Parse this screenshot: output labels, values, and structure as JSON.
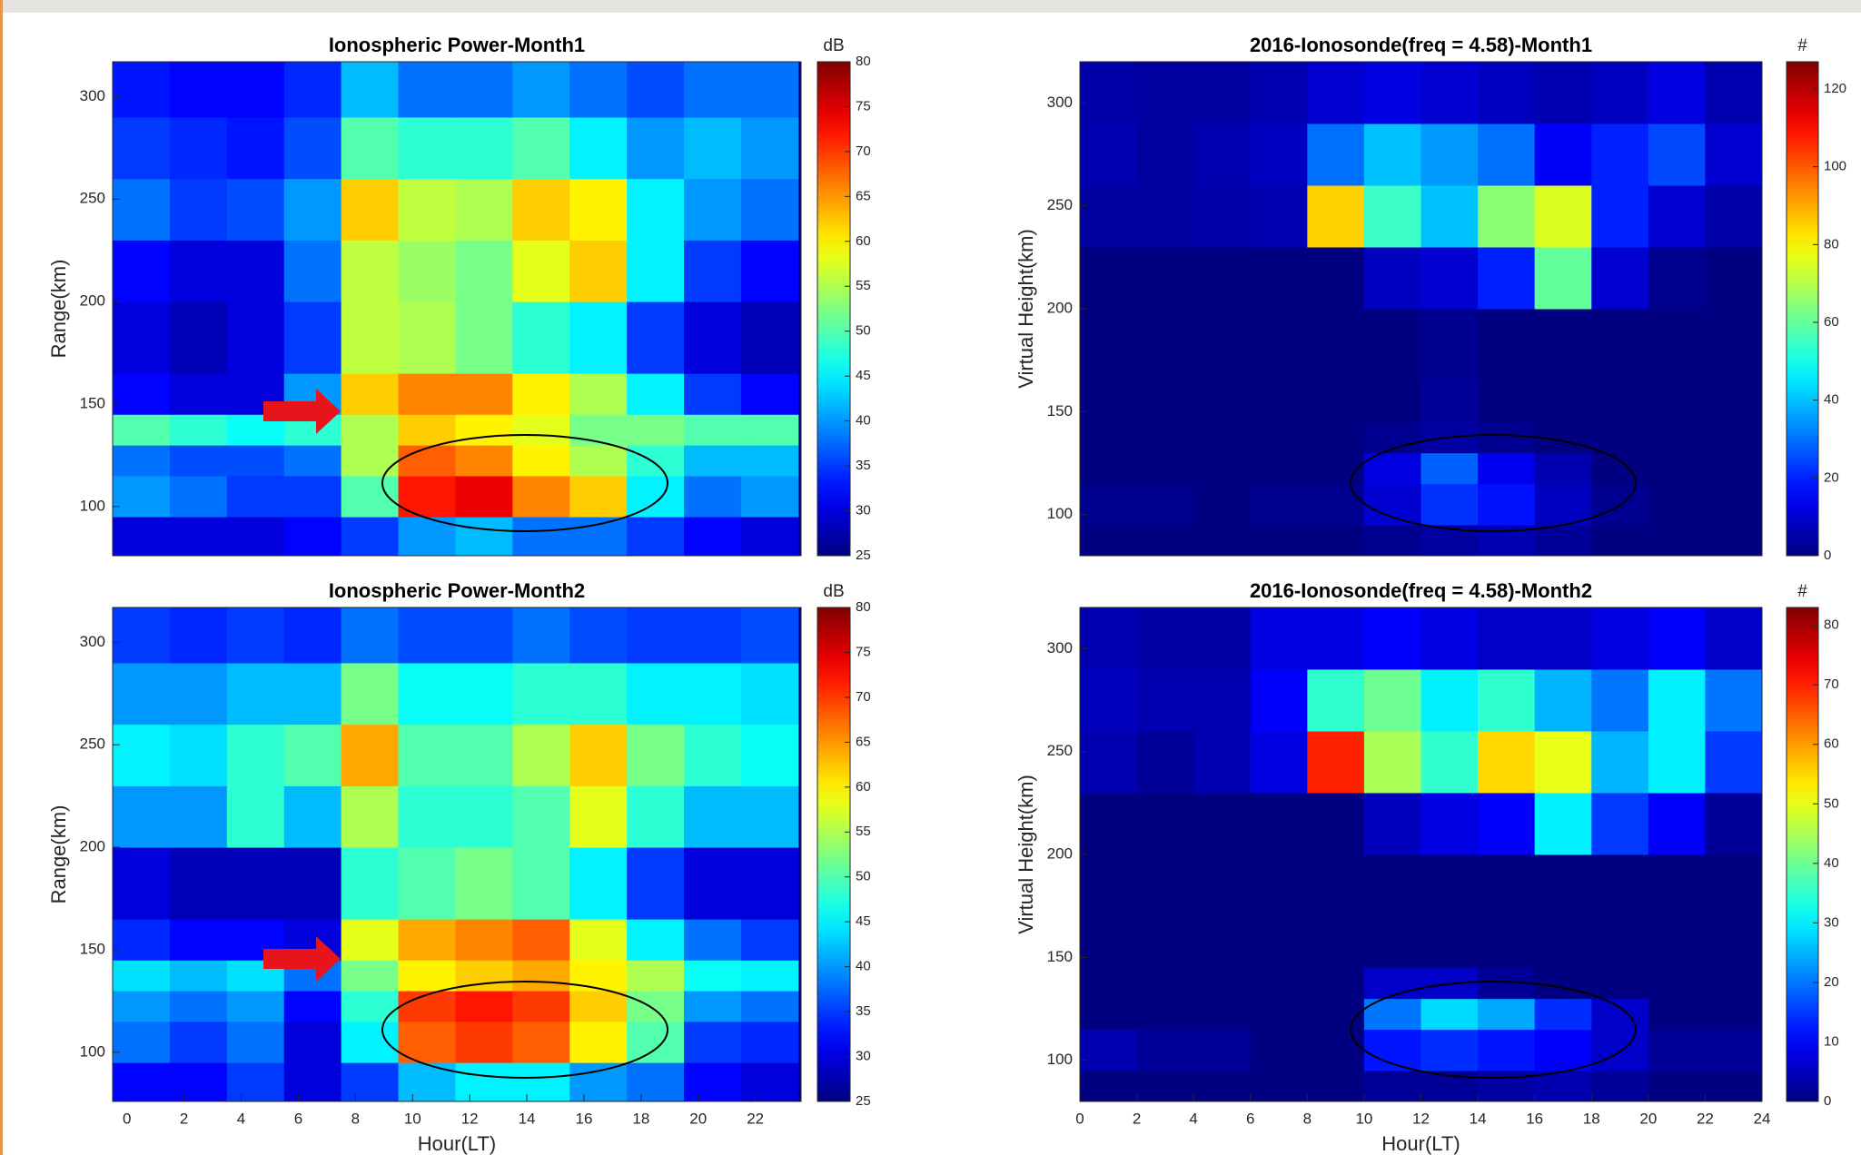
{
  "chart_data": [
    {
      "type": "heatmap",
      "title": "Ionospheric Power-Month1",
      "ylabel": "Range(km)",
      "colorbar_label": "dB",
      "xbins": [
        -0.5,
        1.5,
        3.5,
        5.5,
        7.5,
        9.5,
        11.5,
        13.5,
        15.5,
        17.5,
        19.5,
        21.5,
        23.5
      ],
      "ybins": [
        76,
        95,
        115,
        130,
        145,
        165,
        200,
        230,
        260,
        290,
        317
      ],
      "xlim": [
        -0.5,
        23.6
      ],
      "ylim": [
        76,
        317
      ],
      "yticks": [
        100,
        150,
        200,
        250,
        300
      ],
      "clim": [
        25,
        80
      ],
      "cticks": [
        25,
        30,
        35,
        40,
        45,
        50,
        55,
        60,
        65,
        70,
        75,
        80
      ],
      "z": [
        [
          30,
          30,
          30,
          32,
          35,
          40,
          42,
          38,
          38,
          35,
          32,
          30
        ],
        [
          40,
          38,
          35,
          35,
          50,
          72,
          74,
          66,
          62,
          45,
          38,
          40
        ],
        [
          38,
          36,
          36,
          38,
          55,
          68,
          66,
          60,
          55,
          48,
          42,
          42
        ],
        [
          50,
          48,
          46,
          48,
          55,
          62,
          60,
          58,
          52,
          52,
          50,
          50
        ],
        [
          32,
          30,
          30,
          40,
          62,
          66,
          66,
          60,
          55,
          45,
          35,
          32
        ],
        [
          30,
          28,
          30,
          35,
          56,
          55,
          52,
          48,
          45,
          35,
          30,
          28
        ],
        [
          32,
          30,
          30,
          38,
          56,
          54,
          52,
          58,
          62,
          45,
          35,
          32
        ],
        [
          38,
          35,
          36,
          40,
          62,
          56,
          55,
          62,
          60,
          45,
          40,
          38
        ],
        [
          35,
          34,
          33,
          36,
          50,
          48,
          48,
          50,
          45,
          40,
          42,
          40
        ],
        [
          33,
          32,
          32,
          34,
          42,
          38,
          38,
          40,
          38,
          36,
          38,
          38
        ]
      ]
    },
    {
      "type": "heatmap",
      "title": "2016-Ionosonde(freq = 4.58)-Month1",
      "ylabel": "Virtual Height(km)",
      "colorbar_label": "#",
      "xbins": [
        0,
        2,
        4,
        6,
        8,
        10,
        12,
        14,
        16,
        18,
        20,
        22,
        24
      ],
      "ybins": [
        80,
        95,
        115,
        130,
        145,
        165,
        200,
        230,
        260,
        290,
        320
      ],
      "xlim": [
        0,
        24
      ],
      "ylim": [
        80,
        320
      ],
      "yticks": [
        100,
        150,
        200,
        250,
        300
      ],
      "clim": [
        0,
        127
      ],
      "cticks": [
        0,
        20,
        40,
        60,
        80,
        100,
        120
      ],
      "z": [
        [
          0,
          0,
          0,
          0,
          0,
          2,
          4,
          6,
          3,
          0,
          0,
          0
        ],
        [
          2,
          2,
          0,
          2,
          2,
          10,
          22,
          18,
          8,
          2,
          0,
          0
        ],
        [
          0,
          0,
          0,
          0,
          0,
          12,
          28,
          14,
          6,
          0,
          0,
          0
        ],
        [
          0,
          0,
          0,
          0,
          0,
          2,
          4,
          2,
          0,
          0,
          0,
          0
        ],
        [
          0,
          0,
          0,
          0,
          0,
          0,
          3,
          0,
          0,
          0,
          0,
          0
        ],
        [
          0,
          0,
          0,
          0,
          0,
          0,
          2,
          0,
          0,
          0,
          0,
          0
        ],
        [
          0,
          0,
          0,
          0,
          0,
          8,
          10,
          20,
          60,
          10,
          2,
          0
        ],
        [
          4,
          4,
          5,
          6,
          85,
          55,
          40,
          65,
          75,
          20,
          10,
          5
        ],
        [
          6,
          4,
          6,
          8,
          30,
          40,
          35,
          30,
          15,
          20,
          25,
          10
        ],
        [
          5,
          4,
          4,
          6,
          10,
          12,
          10,
          8,
          6,
          8,
          12,
          6
        ]
      ]
    },
    {
      "type": "heatmap",
      "title": "Ionospheric Power-Month2",
      "xlabel": "Hour(LT)",
      "ylabel": "Range(km)",
      "colorbar_label": "dB",
      "xbins": [
        -0.5,
        1.5,
        3.5,
        5.5,
        7.5,
        9.5,
        11.5,
        13.5,
        15.5,
        17.5,
        19.5,
        21.5,
        23.5
      ],
      "ybins": [
        76,
        95,
        115,
        130,
        145,
        165,
        200,
        230,
        260,
        290,
        317
      ],
      "xlim": [
        -0.5,
        23.6
      ],
      "ylim": [
        76,
        317
      ],
      "xticks": [
        0,
        2,
        4,
        6,
        8,
        10,
        12,
        14,
        16,
        18,
        20,
        22
      ],
      "yticks": [
        100,
        150,
        200,
        250,
        300
      ],
      "clim": [
        25,
        80
      ],
      "cticks": [
        25,
        30,
        35,
        40,
        45,
        50,
        55,
        60,
        65,
        70,
        75,
        80
      ],
      "z": [
        [
          32,
          32,
          35,
          30,
          35,
          42,
          45,
          45,
          40,
          38,
          32,
          30
        ],
        [
          38,
          35,
          38,
          30,
          45,
          68,
          70,
          68,
          60,
          50,
          35,
          34
        ],
        [
          40,
          38,
          40,
          32,
          48,
          70,
          72,
          70,
          62,
          52,
          40,
          38
        ],
        [
          44,
          42,
          44,
          38,
          52,
          60,
          62,
          64,
          60,
          55,
          46,
          45
        ],
        [
          34,
          32,
          32,
          30,
          58,
          64,
          66,
          68,
          58,
          45,
          38,
          35
        ],
        [
          30,
          28,
          28,
          28,
          48,
          50,
          52,
          50,
          45,
          35,
          30,
          30
        ],
        [
          40,
          40,
          48,
          42,
          55,
          48,
          48,
          50,
          58,
          48,
          42,
          42
        ],
        [
          45,
          44,
          48,
          50,
          64,
          50,
          50,
          55,
          62,
          52,
          48,
          46
        ],
        [
          40,
          40,
          42,
          42,
          52,
          46,
          46,
          48,
          48,
          45,
          45,
          44
        ],
        [
          35,
          34,
          35,
          34,
          38,
          36,
          36,
          38,
          36,
          35,
          35,
          36
        ]
      ]
    },
    {
      "type": "heatmap",
      "title": "2016-Ionosonde(freq = 4.58)-Month2",
      "xlabel": "Hour(LT)",
      "ylabel": "Virtual Height(km)",
      "colorbar_label": "#",
      "xbins": [
        0,
        2,
        4,
        6,
        8,
        10,
        12,
        14,
        16,
        18,
        20,
        22,
        24
      ],
      "ybins": [
        80,
        95,
        115,
        130,
        145,
        165,
        200,
        230,
        260,
        290,
        320
      ],
      "xlim": [
        0,
        24
      ],
      "ylim": [
        80,
        320
      ],
      "xticks": [
        0,
        2,
        4,
        6,
        8,
        10,
        12,
        14,
        16,
        18,
        20,
        22,
        24
      ],
      "yticks": [
        100,
        150,
        200,
        250,
        300
      ],
      "clim": [
        0,
        83
      ],
      "cticks": [
        0,
        10,
        20,
        30,
        40,
        50,
        60,
        70,
        80
      ],
      "z": [
        [
          0,
          0,
          0,
          0,
          0,
          2,
          2,
          3,
          4,
          2,
          0,
          0
        ],
        [
          4,
          2,
          2,
          0,
          0,
          12,
          14,
          12,
          10,
          6,
          2,
          2
        ],
        [
          0,
          0,
          0,
          0,
          0,
          20,
          28,
          24,
          14,
          6,
          0,
          0
        ],
        [
          0,
          0,
          0,
          0,
          0,
          6,
          6,
          2,
          0,
          0,
          0,
          0
        ],
        [
          0,
          0,
          0,
          0,
          0,
          0,
          0,
          0,
          0,
          0,
          0,
          0
        ],
        [
          0,
          0,
          0,
          0,
          0,
          0,
          0,
          0,
          0,
          0,
          0,
          0
        ],
        [
          0,
          0,
          0,
          0,
          0,
          5,
          8,
          10,
          30,
          15,
          10,
          2
        ],
        [
          4,
          2,
          4,
          8,
          70,
          45,
          35,
          55,
          50,
          25,
          30,
          15
        ],
        [
          5,
          4,
          4,
          10,
          35,
          40,
          30,
          35,
          25,
          20,
          30,
          20
        ],
        [
          4,
          3,
          3,
          8,
          8,
          10,
          8,
          6,
          6,
          8,
          10,
          6
        ]
      ]
    }
  ]
}
